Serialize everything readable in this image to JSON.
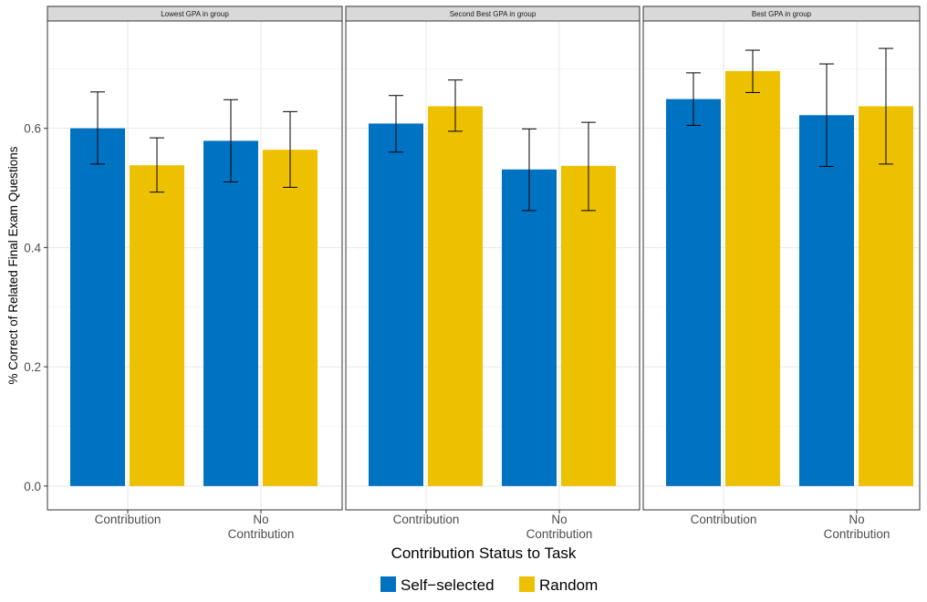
{
  "chart_data": {
    "type": "bar",
    "facets": [
      {
        "title": "Lowest GPA in group",
        "categories": [
          "Contribution",
          "No\nContribution"
        ],
        "series": [
          {
            "name": "Self−selected",
            "values": [
              0.6,
              0.579
            ],
            "error_low": [
              0.54,
              0.51
            ],
            "error_high": [
              0.661,
              0.648
            ]
          },
          {
            "name": "Random",
            "values": [
              0.538,
              0.564
            ],
            "error_low": [
              0.493,
              0.501
            ],
            "error_high": [
              0.584,
              0.628
            ]
          }
        ]
      },
      {
        "title": "Second Best GPA in group",
        "categories": [
          "Contribution",
          "No\nContribution"
        ],
        "series": [
          {
            "name": "Self−selected",
            "values": [
              0.608,
              0.531
            ],
            "error_low": [
              0.56,
              0.462
            ],
            "error_high": [
              0.655,
              0.599
            ]
          },
          {
            "name": "Random",
            "values": [
              0.637,
              0.537
            ],
            "error_low": [
              0.595,
              0.462
            ],
            "error_high": [
              0.681,
              0.61
            ]
          }
        ]
      },
      {
        "title": "Best GPA in group",
        "categories": [
          "Contribution",
          "No\nContribution"
        ],
        "series": [
          {
            "name": "Self−selected",
            "values": [
              0.649,
              0.622
            ],
            "error_low": [
              0.605,
              0.536
            ],
            "error_high": [
              0.693,
              0.708
            ]
          },
          {
            "name": "Random",
            "values": [
              0.696,
              0.637
            ],
            "error_low": [
              0.66,
              0.54
            ],
            "error_high": [
              0.731,
              0.734
            ]
          }
        ]
      }
    ],
    "xlabel": "Contribution Status to Task",
    "ylabel": "% Correct of Related Final Exam Questions",
    "ylim": [
      -0.04,
      0.78
    ],
    "yticks": [
      0.0,
      0.2,
      0.4,
      0.6
    ],
    "ytick_labels": [
      "0.0",
      "0.2",
      "0.4",
      "0.6"
    ],
    "grid": true,
    "legend": {
      "position": "bottom",
      "entries": [
        "Self−selected",
        "Random"
      ]
    },
    "colors": {
      "Self−selected": "#0072C2",
      "Random": "#EDC000"
    }
  }
}
